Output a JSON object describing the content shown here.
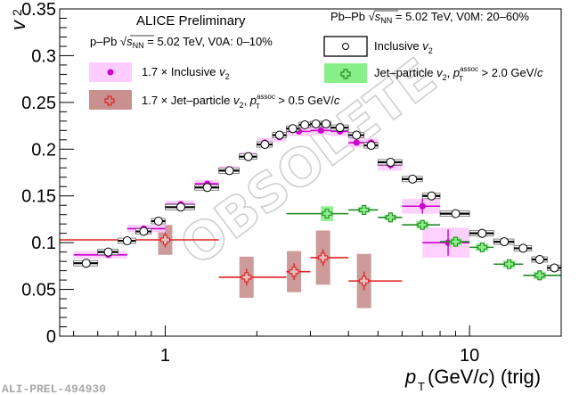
{
  "chart_data": {
    "type": "scatter",
    "title": "",
    "xlabel": "p_T (GeV/c) (trig)",
    "ylabel": "v_2",
    "xscale": "log",
    "xlim": [
      0.45,
      20
    ],
    "ylim": [
      0,
      0.35
    ],
    "x_tick_labels": [
      "1",
      "10"
    ],
    "y_tick_labels": [
      "0",
      "0.05",
      "0.1",
      "0.15",
      "0.2",
      "0.25",
      "0.3",
      "0.35"
    ],
    "grid": false,
    "annotations": {
      "experiment": "ALICE Preliminary",
      "ppb_label": "p–Pb √s_NN = 5.02 TeV, V0A: 0–10%",
      "pbpb_label": "Pb–Pb √s_NN = 5.02 TeV, V0M: 20–60%",
      "watermark_text": "OBSOLETE",
      "figure_id": "ALI-PREL-494930"
    },
    "legend": [
      {
        "label": "1.7 × Inclusive v₂",
        "marker": "filled-circle",
        "color": "#cc00cc",
        "box_color": "#ffccff",
        "placement": "top-left"
      },
      {
        "label": "1.7 × Jet–particle v₂, p_T^assoc > 0.5 GeV/c",
        "marker": "open-cross",
        "color": "#dd2222",
        "box_color": "#c99090",
        "placement": "top-left"
      },
      {
        "label": "Inclusive v₂",
        "marker": "open-circle",
        "color": "#000000",
        "box_color": "#ffffff",
        "placement": "top-right"
      },
      {
        "label": "Jet–particle v₂, p_T^assoc > 2.0 GeV/c",
        "marker": "open-cross",
        "color": "#228822",
        "box_color": "#88ee88",
        "placement": "top-right"
      }
    ],
    "series": [
      {
        "name": "Inclusive v2 (Pb-Pb)",
        "color": "#000000",
        "points": [
          {
            "x": 0.55,
            "xlo": 0.5,
            "xhi": 0.6,
            "y": 0.078,
            "syst": 0.002
          },
          {
            "x": 0.65,
            "xlo": 0.6,
            "xhi": 0.7,
            "y": 0.09,
            "syst": 0.002
          },
          {
            "x": 0.75,
            "xlo": 0.7,
            "xhi": 0.8,
            "y": 0.102,
            "syst": 0.002
          },
          {
            "x": 0.85,
            "xlo": 0.8,
            "xhi": 0.9,
            "y": 0.112,
            "syst": 0.002
          },
          {
            "x": 0.95,
            "xlo": 0.9,
            "xhi": 1.0,
            "y": 0.123,
            "syst": 0.002
          },
          {
            "x": 1.125,
            "xlo": 1.0,
            "xhi": 1.25,
            "y": 0.138,
            "syst": 0.002
          },
          {
            "x": 1.375,
            "xlo": 1.25,
            "xhi": 1.5,
            "y": 0.159,
            "syst": 0.002
          },
          {
            "x": 1.625,
            "xlo": 1.5,
            "xhi": 1.75,
            "y": 0.177,
            "syst": 0.002
          },
          {
            "x": 1.875,
            "xlo": 1.75,
            "xhi": 2.0,
            "y": 0.192,
            "syst": 0.002
          },
          {
            "x": 2.125,
            "xlo": 2.0,
            "xhi": 2.25,
            "y": 0.205,
            "syst": 0.002
          },
          {
            "x": 2.375,
            "xlo": 2.25,
            "xhi": 2.5,
            "y": 0.215,
            "syst": 0.002
          },
          {
            "x": 2.625,
            "xlo": 2.5,
            "xhi": 2.75,
            "y": 0.222,
            "syst": 0.002
          },
          {
            "x": 2.875,
            "xlo": 2.75,
            "xhi": 3.0,
            "y": 0.226,
            "syst": 0.002
          },
          {
            "x": 3.125,
            "xlo": 3.0,
            "xhi": 3.25,
            "y": 0.227,
            "syst": 0.002
          },
          {
            "x": 3.375,
            "xlo": 3.25,
            "xhi": 3.5,
            "y": 0.227,
            "syst": 0.002
          },
          {
            "x": 3.75,
            "xlo": 3.5,
            "xhi": 4.0,
            "y": 0.223,
            "syst": 0.002
          },
          {
            "x": 4.25,
            "xlo": 4.0,
            "xhi": 4.5,
            "y": 0.215,
            "syst": 0.002
          },
          {
            "x": 4.75,
            "xlo": 4.5,
            "xhi": 5.0,
            "y": 0.204,
            "syst": 0.002
          },
          {
            "x": 5.5,
            "xlo": 5.0,
            "xhi": 6.0,
            "y": 0.186,
            "syst": 0.002
          },
          {
            "x": 6.5,
            "xlo": 6.0,
            "xhi": 7.0,
            "y": 0.168,
            "syst": 0.002
          },
          {
            "x": 7.5,
            "xlo": 7.0,
            "xhi": 8.0,
            "y": 0.15,
            "syst": 0.002
          },
          {
            "x": 9.0,
            "xlo": 8.0,
            "xhi": 10.0,
            "y": 0.131,
            "syst": 0.002
          },
          {
            "x": 11.0,
            "xlo": 10.0,
            "xhi": 12.0,
            "y": 0.11,
            "syst": 0.002
          },
          {
            "x": 13.0,
            "xlo": 12.0,
            "xhi": 14.0,
            "y": 0.101,
            "syst": 0.003
          },
          {
            "x": 15.0,
            "xlo": 14.0,
            "xhi": 16.0,
            "y": 0.094,
            "syst": 0.003
          },
          {
            "x": 17.0,
            "xlo": 16.0,
            "xhi": 18.0,
            "y": 0.082,
            "syst": 0.003
          },
          {
            "x": 19.0,
            "xlo": 18.0,
            "xhi": 20.0,
            "y": 0.073,
            "syst": 0.003
          }
        ]
      },
      {
        "name": "1.7 x Inclusive v2 (p-Pb)",
        "color": "#cc00cc",
        "points": [
          {
            "x": 0.65,
            "xlo": 0.5,
            "xhi": 0.75,
            "y": 0.087,
            "syst": 0.004,
            "stat": 0.001
          },
          {
            "x": 0.85,
            "xlo": 0.75,
            "xhi": 1.0,
            "y": 0.115,
            "syst": 0.004,
            "stat": 0.001
          },
          {
            "x": 1.125,
            "xlo": 1.0,
            "xhi": 1.25,
            "y": 0.141,
            "syst": 0.004,
            "stat": 0.001
          },
          {
            "x": 1.375,
            "xlo": 1.25,
            "xhi": 1.5,
            "y": 0.163,
            "syst": 0.004,
            "stat": 0.001
          },
          {
            "x": 1.625,
            "xlo": 1.5,
            "xhi": 1.75,
            "y": 0.178,
            "syst": 0.004,
            "stat": 0.001
          },
          {
            "x": 1.875,
            "xlo": 1.75,
            "xhi": 2.0,
            "y": 0.193,
            "syst": 0.004,
            "stat": 0.001
          },
          {
            "x": 2.125,
            "xlo": 2.0,
            "xhi": 2.25,
            "y": 0.207,
            "syst": 0.005,
            "stat": 0.001
          },
          {
            "x": 2.375,
            "xlo": 2.25,
            "xhi": 2.5,
            "y": 0.213,
            "syst": 0.005,
            "stat": 0.001
          },
          {
            "x": 2.75,
            "xlo": 2.5,
            "xhi": 3.0,
            "y": 0.219,
            "syst": 0.005,
            "stat": 0.002
          },
          {
            "x": 3.25,
            "xlo": 3.0,
            "xhi": 3.5,
            "y": 0.22,
            "syst": 0.005,
            "stat": 0.002
          },
          {
            "x": 3.75,
            "xlo": 3.5,
            "xhi": 4.0,
            "y": 0.219,
            "syst": 0.005,
            "stat": 0.002
          },
          {
            "x": 4.25,
            "xlo": 4.0,
            "xhi": 4.5,
            "y": 0.207,
            "syst": 0.005,
            "stat": 0.003
          },
          {
            "x": 4.75,
            "xlo": 4.5,
            "xhi": 5.0,
            "y": 0.207,
            "syst": 0.005,
            "stat": 0.003
          },
          {
            "x": 5.5,
            "xlo": 5.0,
            "xhi": 6.0,
            "y": 0.183,
            "syst": 0.006,
            "stat": 0.004
          },
          {
            "x": 7.0,
            "xlo": 6.0,
            "xhi": 8.0,
            "y": 0.139,
            "syst": 0.008,
            "stat": 0.008
          },
          {
            "x": 8.5,
            "xlo": 7.0,
            "xhi": 10.0,
            "y": 0.1,
            "syst": 0.016,
            "stat": 0.014
          }
        ]
      },
      {
        "name": "Jet-particle v2, pT assoc > 2.0 GeV/c (Pb-Pb)",
        "color": "#228822",
        "points": [
          {
            "x": 3.4,
            "xlo": 2.5,
            "xhi": 4.0,
            "y": 0.131,
            "syst": 0.008,
            "stat": 0.003
          },
          {
            "x": 4.5,
            "xlo": 4.0,
            "xhi": 5.0,
            "y": 0.135,
            "syst": 0.003,
            "stat": 0.003
          },
          {
            "x": 5.5,
            "xlo": 5.0,
            "xhi": 6.0,
            "y": 0.127,
            "syst": 0.003,
            "stat": 0.003
          },
          {
            "x": 7.0,
            "xlo": 6.0,
            "xhi": 8.0,
            "y": 0.119,
            "syst": 0.004,
            "stat": 0.004
          },
          {
            "x": 9.0,
            "xlo": 8.0,
            "xhi": 10.0,
            "y": 0.101,
            "syst": 0.004,
            "stat": 0.004
          },
          {
            "x": 11.0,
            "xlo": 10.0,
            "xhi": 12.0,
            "y": 0.095,
            "syst": 0.004,
            "stat": 0.004
          },
          {
            "x": 13.5,
            "xlo": 12.0,
            "xhi": 15.0,
            "y": 0.077,
            "syst": 0.004,
            "stat": 0.004
          },
          {
            "x": 17.0,
            "xlo": 15.0,
            "xhi": 20.0,
            "y": 0.065,
            "syst": 0.004,
            "stat": 0.004
          }
        ]
      },
      {
        "name": "1.7 x Jet-particle v2, pT assoc > 0.5 GeV/c (p-Pb)",
        "color": "#dd2222",
        "points": [
          {
            "x": 1.0,
            "xlo": 0.45,
            "xhi": 1.5,
            "y": 0.103,
            "syst": 0.016,
            "stat": 0.008
          },
          {
            "x": 1.85,
            "xlo": 1.5,
            "xhi": 2.5,
            "y": 0.063,
            "syst": 0.022,
            "stat": 0.009
          },
          {
            "x": 2.65,
            "xlo": 2.5,
            "xhi": 3.0,
            "y": 0.069,
            "syst": 0.022,
            "stat": 0.009
          },
          {
            "x": 3.3,
            "xlo": 3.0,
            "xhi": 4.0,
            "y": 0.084,
            "syst": 0.029,
            "stat": 0.009
          },
          {
            "x": 4.5,
            "xlo": 4.0,
            "xhi": 6.0,
            "y": 0.059,
            "syst": 0.029,
            "stat": 0.01
          }
        ]
      }
    ]
  }
}
